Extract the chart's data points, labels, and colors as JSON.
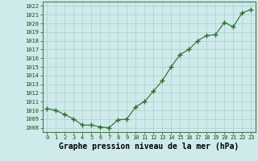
{
  "x": [
    0,
    1,
    2,
    3,
    4,
    5,
    6,
    7,
    8,
    9,
    10,
    11,
    12,
    13,
    14,
    15,
    16,
    17,
    18,
    19,
    20,
    21,
    22,
    23
  ],
  "y": [
    1010.2,
    1010.0,
    1009.5,
    1009.0,
    1008.3,
    1008.3,
    1008.1,
    1008.0,
    1008.9,
    1009.0,
    1010.4,
    1011.0,
    1012.2,
    1013.4,
    1015.0,
    1016.4,
    1017.0,
    1018.0,
    1018.6,
    1018.7,
    1020.1,
    1019.6,
    1021.2,
    1021.6
  ],
  "ylim_min": 1007.5,
  "ylim_max": 1022.5,
  "xlim_min": -0.5,
  "xlim_max": 23.5,
  "yticks": [
    1008,
    1009,
    1010,
    1011,
    1012,
    1013,
    1014,
    1015,
    1016,
    1017,
    1018,
    1019,
    1020,
    1021,
    1022
  ],
  "xticks": [
    0,
    1,
    2,
    3,
    4,
    5,
    6,
    7,
    8,
    9,
    10,
    11,
    12,
    13,
    14,
    15,
    16,
    17,
    18,
    19,
    20,
    21,
    22,
    23
  ],
  "xlabel": "Graphe pression niveau de la mer (hPa)",
  "line_color": "#2a6e2a",
  "marker": "+",
  "marker_size": 4,
  "marker_linewidth": 1.0,
  "line_width": 0.8,
  "bg_color": "#ceeaea",
  "grid_color": "#b0cece",
  "tick_label_color": "#1a4a1a",
  "xlabel_color": "#000000",
  "tick_fontsize": 5.0,
  "xlabel_fontsize": 7.0
}
